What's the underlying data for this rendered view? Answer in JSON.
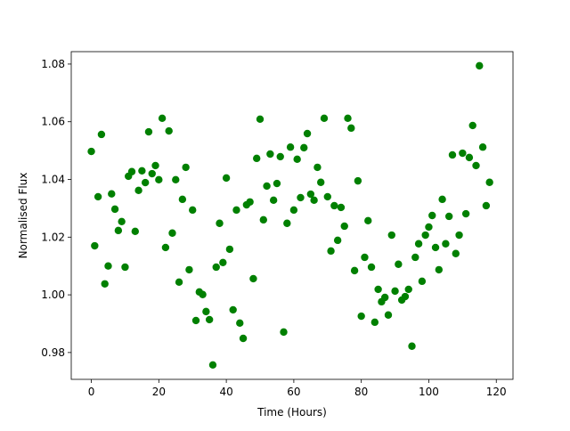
{
  "chart_data": {
    "type": "scatter",
    "xlabel": "Time (Hours)",
    "ylabel": "Normalised Flux",
    "x": [
      0,
      1,
      2,
      3,
      4,
      5,
      6,
      7,
      8,
      9,
      10,
      11,
      12,
      13,
      14,
      15,
      16,
      17,
      18,
      19,
      20,
      21,
      22,
      23,
      24,
      25,
      26,
      27,
      28,
      29,
      30,
      31,
      32,
      33,
      34,
      35,
      36,
      37,
      38,
      39,
      40,
      41,
      42,
      43,
      44,
      45,
      46,
      47,
      48,
      49,
      50,
      51,
      52,
      53,
      54,
      55,
      56,
      57,
      58,
      59,
      60,
      61,
      62,
      63,
      64,
      65,
      66,
      67,
      68,
      69,
      70,
      71,
      72,
      73,
      74,
      75,
      76,
      77,
      78,
      79,
      80,
      81,
      82,
      83,
      84,
      85,
      86,
      87,
      88,
      89,
      90,
      91,
      92,
      93,
      94,
      95,
      96,
      97,
      98,
      99,
      100,
      101,
      102,
      103,
      104,
      105,
      106,
      107,
      108,
      109,
      110,
      111,
      112,
      113,
      114,
      115,
      116,
      117,
      118
    ],
    "values": [
      1.0497,
      1.017,
      1.034,
      1.0556,
      1.0038,
      1.01,
      1.035,
      1.0297,
      1.0223,
      1.0254,
      1.0096,
      1.0411,
      1.0427,
      1.022,
      1.0362,
      1.043,
      1.0389,
      1.0565,
      1.042,
      1.0448,
      1.0399,
      1.0612,
      1.0164,
      1.0568,
      1.0214,
      1.0399,
      1.0044,
      1.0331,
      1.0442,
      1.0087,
      1.0294,
      0.9911,
      1.001,
      1.0001,
      0.9942,
      0.9914,
      0.9757,
      1.0096,
      1.0248,
      1.0112,
      1.0405,
      1.0158,
      0.9948,
      1.0294,
      0.9902,
      0.9849,
      1.0312,
      1.0322,
      1.0056,
      1.0473,
      1.0609,
      1.026,
      1.0377,
      1.0488,
      1.0328,
      1.0386,
      1.0479,
      0.9871,
      1.0248,
      1.0512,
      1.0294,
      1.047,
      1.0337,
      1.051,
      1.0559,
      1.0349,
      1.0328,
      1.0442,
      1.039,
      1.0612,
      1.034,
      1.0152,
      1.0309,
      1.0189,
      1.0303,
      1.0238,
      1.0612,
      1.0578,
      1.0084,
      1.0395,
      0.9926,
      1.013,
      1.0257,
      1.0096,
      0.9905,
      1.0019,
      0.9976,
      0.9991,
      0.993,
      1.0207,
      1.0013,
      1.0106,
      0.9982,
      0.9994,
      1.0019,
      0.9822,
      1.013,
      1.0177,
      1.0047,
      1.0207,
      1.0235,
      1.0275,
      1.0164,
      1.0087,
      1.0331,
      1.0177,
      1.0272,
      1.0485,
      1.0143,
      1.0207,
      1.0491,
      1.0281,
      1.0476,
      1.0587,
      1.0448,
      1.0794,
      1.0512,
      1.0309,
      1.039
    ],
    "color": "#008000",
    "xlim": [
      -5.95,
      124.95
    ],
    "xticks": [
      0,
      20,
      40,
      60,
      80,
      100,
      120
    ],
    "ylim": [
      0.9707,
      1.0843
    ],
    "yticks": [
      0.98,
      {
        "value": 1.0,
        "label": "1.00"
      },
      1.02,
      1.04,
      1.06,
      1.08
    ]
  }
}
